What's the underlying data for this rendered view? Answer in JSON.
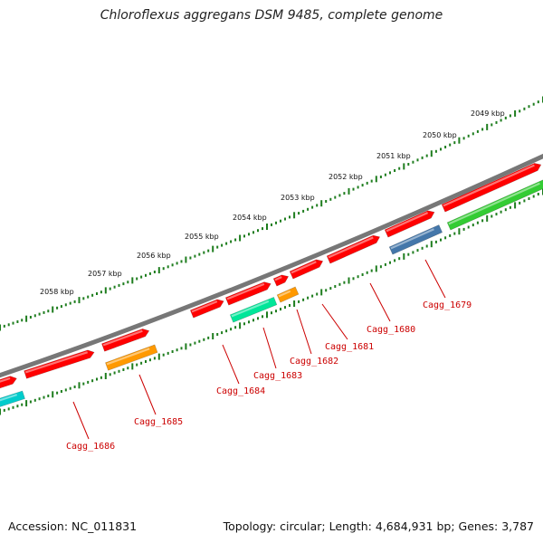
{
  "title": "Chloroflexus aggregans DSM 9485, complete genome",
  "footer": {
    "accession": "Accession: NC_011831",
    "summary": "Topology: circular; Length: 4,684,931 bp; Genes: 3,787"
  },
  "ruler": {
    "labels": [
      "2049 kbp",
      "2050 kbp",
      "2051 kbp",
      "2052 kbp",
      "2053 kbp",
      "2054 kbp",
      "2055 kbp",
      "2056 kbp",
      "2057 kbp",
      "2058 kbp"
    ]
  },
  "colors": {
    "backbone": "#777777",
    "ruler": "#1e7d1e",
    "label_red": "#cc0000",
    "gene_red": "#ff0000",
    "gene_orange": "#ff9900",
    "gene_teal": "#00e699",
    "gene_steelblue": "#4477aa",
    "gene_green": "#33cc33",
    "gene_cyan": "#00cccc"
  },
  "genes": [
    {
      "label": "Cagg_1679",
      "color": "#4477aa",
      "strand": "reverse"
    },
    {
      "label": "Cagg_1680",
      "color": "#ff0000",
      "strand": "forward"
    },
    {
      "label": "Cagg_1681",
      "color": "#ff0000",
      "strand": "forward"
    },
    {
      "label": "Cagg_1682",
      "color": "#ff9900",
      "strand": "reverse"
    },
    {
      "label": "Cagg_1683",
      "color": "#00e699",
      "strand": "reverse"
    },
    {
      "label": "Cagg_1684",
      "color": "#ff0000",
      "strand": "forward"
    },
    {
      "label": "Cagg_1685",
      "color": "#ff9900",
      "strand": "reverse"
    },
    {
      "label": "Cagg_1686",
      "color": "#ff0000",
      "strand": "forward"
    }
  ]
}
